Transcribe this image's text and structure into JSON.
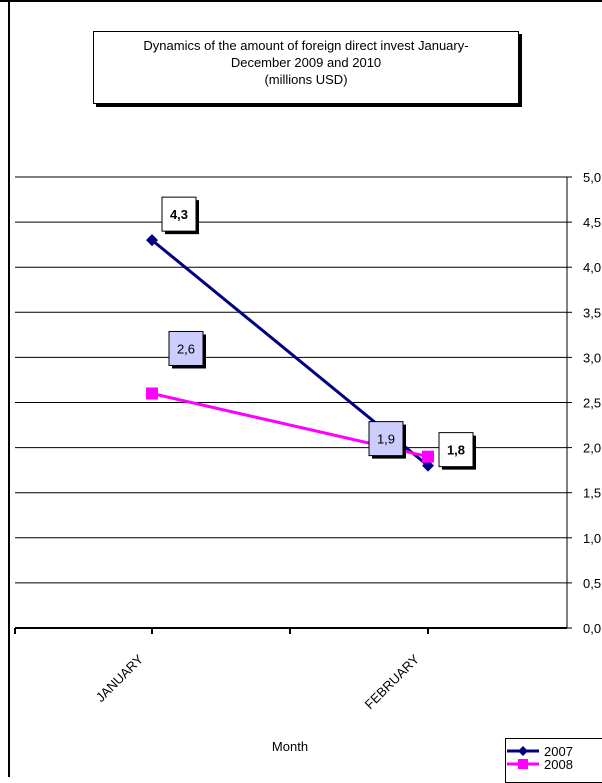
{
  "chart_data": {
    "type": "line",
    "title_lines": [
      "Dynamics of the amount of foreign direct invest January-",
      "December 2009 and  2010",
      "(millions USD)"
    ],
    "xlabel": "Month",
    "ylabel": "",
    "categories": [
      "JANUARY",
      "FEBRUARY"
    ],
    "ylim": [
      0,
      5
    ],
    "y_ticks": [
      "0,0",
      "0,5",
      "1,0",
      "1,5",
      "2,0",
      "2,5",
      "3,0",
      "3,5",
      "4,0",
      "4,5",
      "5,0"
    ],
    "grid": true,
    "legend_position": "bottom-right",
    "series": [
      {
        "name": "2007",
        "color": "#000080",
        "marker": "diamond",
        "values": [
          4.3,
          1.8
        ],
        "data_labels": [
          "4,3",
          "1,8"
        ],
        "label_fill": "#ffffff",
        "label_bold": true
      },
      {
        "name": "2008",
        "color": "#ff00ff",
        "marker": "square",
        "values": [
          2.6,
          1.9
        ],
        "data_labels": [
          "2,6",
          "1,9"
        ],
        "label_fill": "#ccccff",
        "label_bold": false
      }
    ]
  }
}
